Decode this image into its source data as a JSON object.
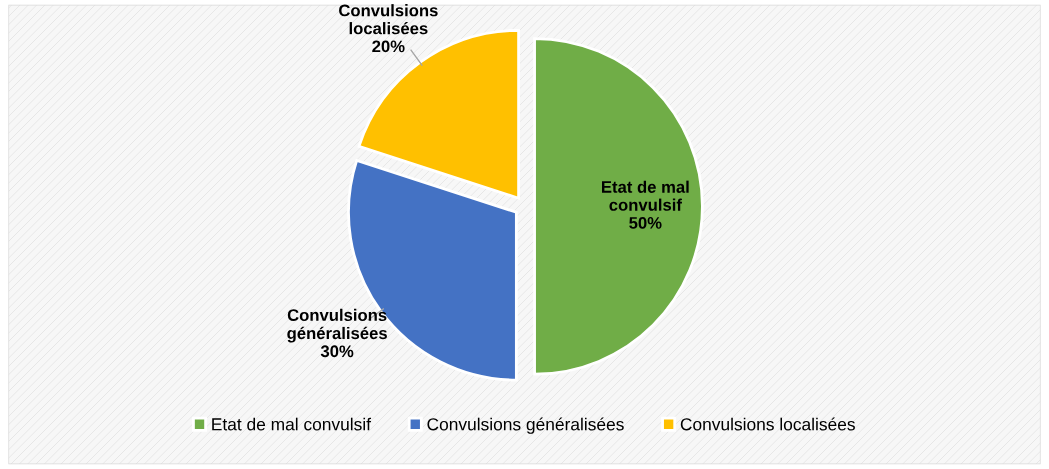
{
  "chart_data": {
    "type": "pie",
    "categories": [
      "Etat de mal convulsif",
      "Convulsions généralisées",
      "Convulsions localisées"
    ],
    "values": [
      50,
      30,
      20
    ],
    "colors": [
      "#70ad47",
      "#4472c4",
      "#ffc000"
    ],
    "value_labels": [
      "50%",
      "30%",
      "20%"
    ],
    "legend": "bottom"
  }
}
